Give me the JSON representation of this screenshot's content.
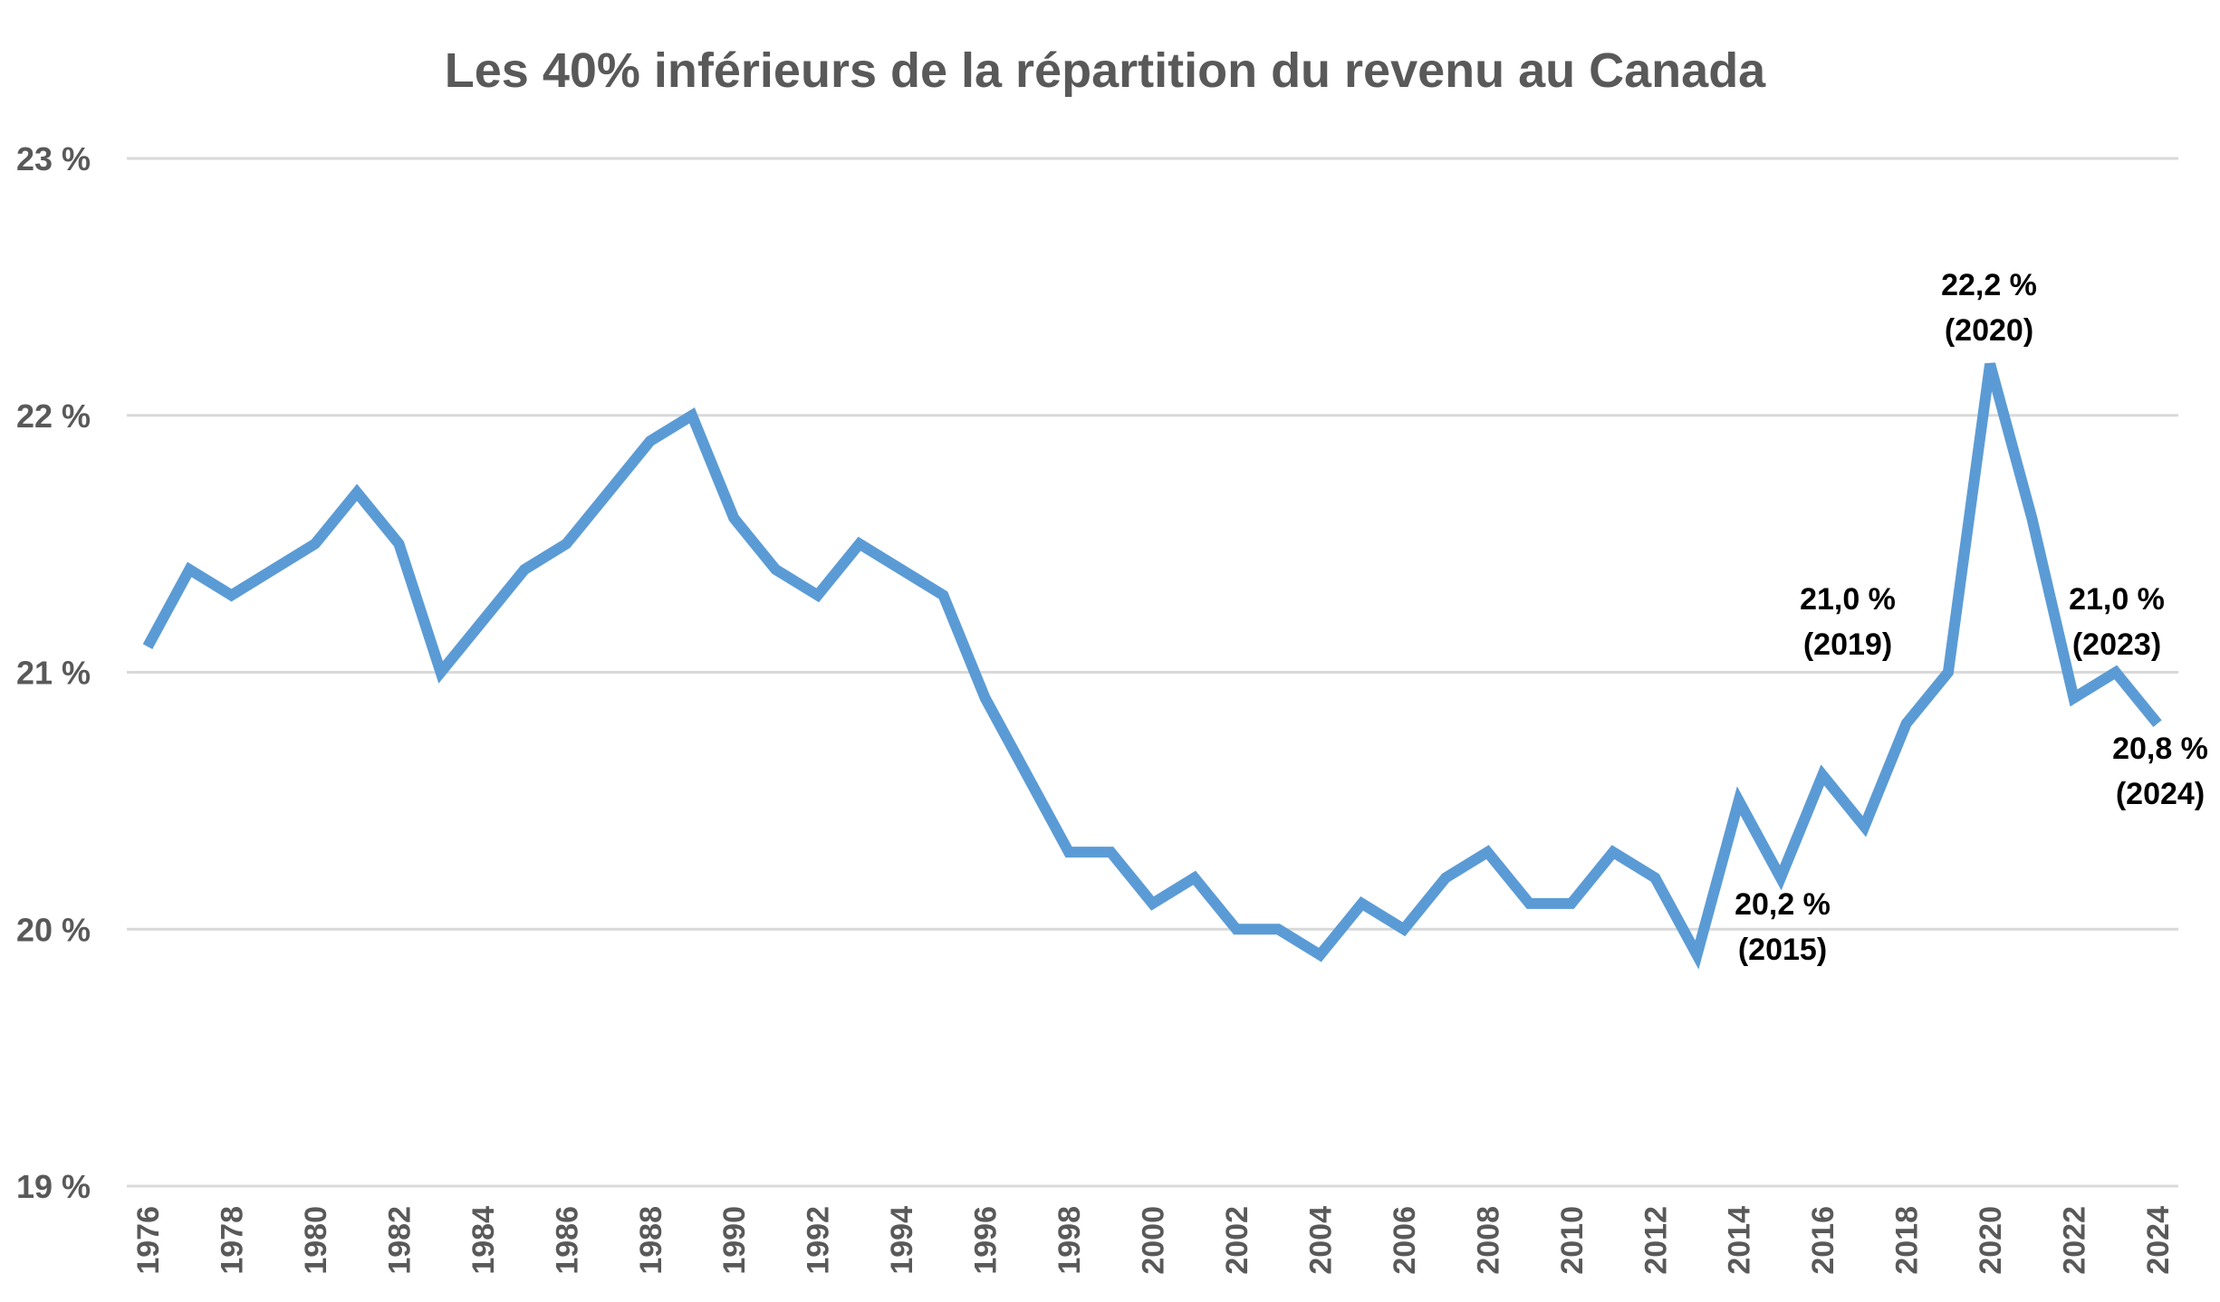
{
  "chart_data": {
    "type": "line",
    "title": "Les 40% inférieurs de la répartition du revenu au Canada",
    "xlabel": "",
    "ylabel": "",
    "ylim": [
      19,
      23
    ],
    "y_ticks": [
      {
        "value": 23,
        "label": "23 %"
      },
      {
        "value": 22,
        "label": "22 %"
      },
      {
        "value": 21,
        "label": "21 %"
      },
      {
        "value": 20,
        "label": "20 %"
      },
      {
        "value": 19,
        "label": "19 %"
      }
    ],
    "x_tick_labels": [
      "1976",
      "1978",
      "1980",
      "1982",
      "1984",
      "1986",
      "1988",
      "1990",
      "1992",
      "1994",
      "1996",
      "1998",
      "2000",
      "2002",
      "2004",
      "2006",
      "2008",
      "2010",
      "2012",
      "2014",
      "2016",
      "2018",
      "2020",
      "2022",
      "2024"
    ],
    "grid": "horizontal",
    "line_color": "#5B9BD5",
    "series": [
      {
        "x": [
          1976,
          1977,
          1978,
          1979,
          1980,
          1981,
          1982,
          1983,
          1984,
          1985,
          1986,
          1987,
          1988,
          1989,
          1990,
          1991,
          1992,
          1993,
          1994,
          1995,
          1996,
          1997,
          1998,
          1999,
          2000,
          2001,
          2002,
          2003,
          2004,
          2005,
          2006,
          2007,
          2008,
          2009,
          2010,
          2011,
          2012,
          2013,
          2014,
          2015,
          2016,
          2017,
          2018,
          2019,
          2020,
          2021,
          2022,
          2023,
          2024
        ],
        "values": [
          21.1,
          21.4,
          21.3,
          21.4,
          21.5,
          21.7,
          21.5,
          21.0,
          21.2,
          21.4,
          21.5,
          21.7,
          21.9,
          22.0,
          21.6,
          21.4,
          21.3,
          21.5,
          21.4,
          21.3,
          20.9,
          20.6,
          20.3,
          20.3,
          20.1,
          20.2,
          20.0,
          20.0,
          19.9,
          20.1,
          20.0,
          20.2,
          20.3,
          20.1,
          20.1,
          20.3,
          20.2,
          19.9,
          20.5,
          20.2,
          20.6,
          20.4,
          20.8,
          21.0,
          22.2,
          21.6,
          20.9,
          21.0,
          20.8
        ]
      }
    ],
    "annotations": [
      {
        "line1": "20,2 %",
        "line2": "(2015)"
      },
      {
        "line1": "21,0 %",
        "line2": "(2019)"
      },
      {
        "line1": "22,2 %",
        "line2": "(2020)"
      },
      {
        "line1": "21,0 %",
        "line2": "(2023)"
      },
      {
        "line1": "20,8 %",
        "line2": "(2024)"
      }
    ]
  }
}
